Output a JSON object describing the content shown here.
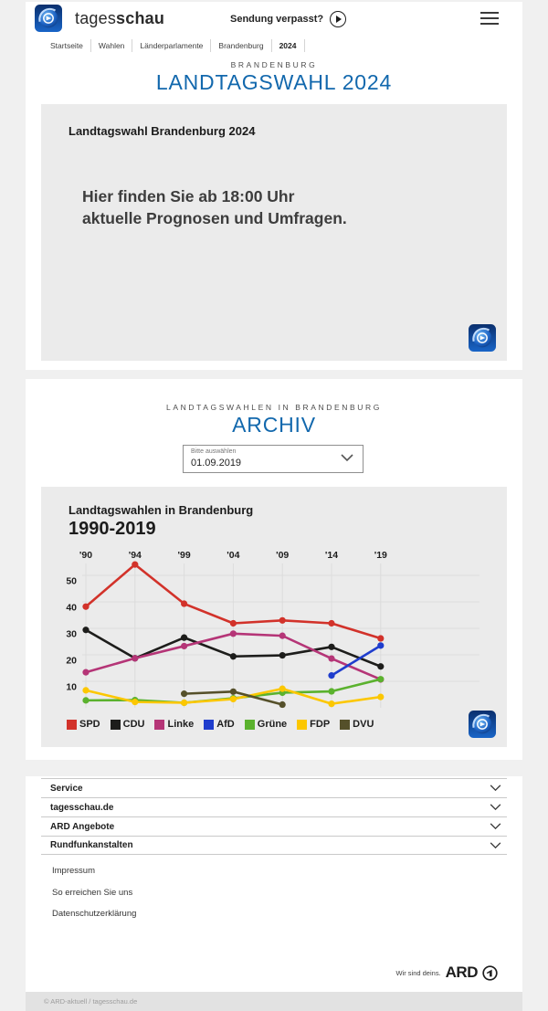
{
  "colors": {
    "accent_blue": "#1268ad",
    "card_gray": "#ebebeb",
    "page_bg": "#f0f0f0"
  },
  "header": {
    "brand_regular": "tages",
    "brand_bold": "schau",
    "missed_show_label": "Sendung verpasst?",
    "breadcrumb": [
      "Startseite",
      "Wahlen",
      "Länderparlamente",
      "Brandenburg",
      "2024"
    ]
  },
  "hero": {
    "eyebrow": "BRANDENBURG",
    "title": "LANDTAGSWAHL 2024",
    "teaser": {
      "title": "Landtagswahl Brandenburg 2024",
      "line1": "Hier finden Sie ab 18:00 Uhr",
      "line2": "aktuelle Prognosen und Umfragen."
    }
  },
  "archive": {
    "eyebrow": "LANDTAGSWAHLEN IN BRANDENBURG",
    "title": "ARCHIV",
    "select_label": "Bitte auswählen",
    "select_value": "01.09.2019"
  },
  "chart_card": {
    "title": "Landtagswahlen in Brandenburg",
    "subtitle": "1990-2019"
  },
  "chart_data": {
    "type": "line",
    "title": "Landtagswahlen in Brandenburg 1990-2019",
    "categories": [
      "'90",
      "'94",
      "'99",
      "'04",
      "'09",
      "'14",
      "'19"
    ],
    "y_ticks": [
      10,
      20,
      30,
      40,
      50
    ],
    "ylim": [
      0,
      58
    ],
    "grid": true,
    "legend_position": "bottom",
    "unit": "percent",
    "series": [
      {
        "name": "SPD",
        "color": "#d2322a",
        "values": [
          38.2,
          54.1,
          39.3,
          31.9,
          33.0,
          31.9,
          26.2
        ]
      },
      {
        "name": "CDU",
        "color": "#1d1d1b",
        "values": [
          29.4,
          18.7,
          26.5,
          19.4,
          19.8,
          23.0,
          15.6
        ]
      },
      {
        "name": "Linke",
        "color": "#b53577",
        "values": [
          13.4,
          18.7,
          23.3,
          28.0,
          27.2,
          18.6,
          10.7
        ]
      },
      {
        "name": "AfD",
        "color": "#1f3dcd",
        "values": [
          null,
          null,
          null,
          null,
          null,
          12.2,
          23.5
        ]
      },
      {
        "name": "Grüne",
        "color": "#5bb22e",
        "values": [
          2.8,
          2.9,
          1.9,
          3.6,
          5.7,
          6.2,
          10.8
        ]
      },
      {
        "name": "FDP",
        "color": "#fcc700",
        "values": [
          6.6,
          2.2,
          1.9,
          3.3,
          7.2,
          1.5,
          4.1
        ]
      },
      {
        "name": "DVU",
        "color": "#55502a",
        "values": [
          null,
          null,
          5.3,
          6.1,
          1.2,
          null,
          null
        ]
      }
    ]
  },
  "footer": {
    "accordions": [
      "Service",
      "tagesschau.de",
      "ARD Angebote",
      "Rundfunkanstalten"
    ],
    "links": [
      "Impressum",
      "So erreichen Sie uns",
      "Datenschutzerklärung"
    ],
    "brand_claim": "Wir sind deins.",
    "brand_name": "ARD",
    "copyright": "© ARD-aktuell / tagesschau.de"
  }
}
